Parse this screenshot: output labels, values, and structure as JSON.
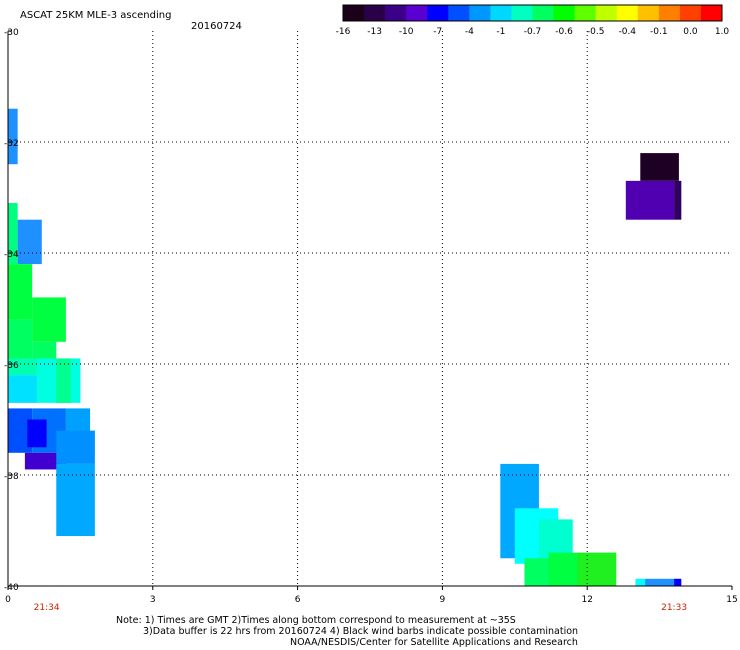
{
  "header": {
    "title": "ASCAT 25KM MLE-3 ascending",
    "date": "20160724"
  },
  "colorbar": {
    "labels": [
      "-16",
      "-13",
      "-10",
      "-7",
      "-4",
      "-1",
      "-0.7",
      "-0.6",
      "-0.5",
      "-0.4",
      "-0.1",
      "0.0",
      "1.0"
    ],
    "colors": [
      "#1a0018",
      "#2a0048",
      "#3c0088",
      "#5a00d0",
      "#0000ff",
      "#0050ff",
      "#0098ff",
      "#00d8ff",
      "#00ffc0",
      "#00ff60",
      "#00ff00",
      "#60ff00",
      "#c0ff00",
      "#ffff00",
      "#ffc000",
      "#ff8000",
      "#ff4000",
      "#ff0000"
    ]
  },
  "chart_data": {
    "type": "heatmap",
    "xlim": [
      0,
      15
    ],
    "ylim": [
      -40,
      -30
    ],
    "x_ticks": [
      "0",
      "3",
      "6",
      "9",
      "12",
      "15"
    ],
    "y_ticks": [
      "-30",
      "-32",
      "-34",
      "-36",
      "-38",
      "-40"
    ],
    "time_labels": [
      {
        "x": 0.8,
        "text": "21:34"
      },
      {
        "x": 13.8,
        "text": "21:33"
      }
    ],
    "cells": [
      {
        "x0": 0.0,
        "x1": 0.2,
        "y0": -32.4,
        "y1": -31.4,
        "color": "#1e90ff"
      },
      {
        "x0": 0.0,
        "x1": 0.2,
        "y0": -34.2,
        "y1": -33.1,
        "color": "#00ff80"
      },
      {
        "x0": 0.2,
        "x1": 0.7,
        "y0": -34.2,
        "y1": -33.4,
        "color": "#1e90ff"
      },
      {
        "x0": 0.0,
        "x1": 0.5,
        "y0": -35.2,
        "y1": -34.2,
        "color": "#00ff40"
      },
      {
        "x0": 0.5,
        "x1": 1.2,
        "y0": -35.6,
        "y1": -34.8,
        "color": "#00ff40"
      },
      {
        "x0": 0.0,
        "x1": 0.5,
        "y0": -36.0,
        "y1": -35.2,
        "color": "#00ff60"
      },
      {
        "x0": 0.5,
        "x1": 1.0,
        "y0": -36.0,
        "y1": -35.6,
        "color": "#00ff60"
      },
      {
        "x0": 0.0,
        "x1": 0.6,
        "y0": -36.2,
        "y1": -35.9,
        "color": "#00ffb0"
      },
      {
        "x0": 0.6,
        "x1": 1.5,
        "y0": -36.7,
        "y1": -35.9,
        "color": "#00ffe0"
      },
      {
        "x0": 1.0,
        "x1": 1.3,
        "y0": -36.7,
        "y1": -35.9,
        "color": "#00ff90"
      },
      {
        "x0": 0.0,
        "x1": 0.6,
        "y0": -36.7,
        "y1": -36.2,
        "color": "#00e0ff"
      },
      {
        "x0": 0.0,
        "x1": 0.5,
        "y0": -37.6,
        "y1": -36.8,
        "color": "#0050ff"
      },
      {
        "x0": 0.5,
        "x1": 1.2,
        "y0": -37.6,
        "y1": -36.8,
        "color": "#0070ff"
      },
      {
        "x0": 1.2,
        "x1": 1.7,
        "y0": -37.5,
        "y1": -36.8,
        "color": "#00a0ff"
      },
      {
        "x0": 0.4,
        "x1": 0.8,
        "y0": -37.5,
        "y1": -37.0,
        "color": "#0000ff"
      },
      {
        "x0": 0.35,
        "x1": 1.2,
        "y0": -37.9,
        "y1": -37.6,
        "color": "#4000d0"
      },
      {
        "x0": 1.0,
        "x1": 1.8,
        "y0": -37.8,
        "y1": -37.2,
        "color": "#0090ff"
      },
      {
        "x0": 1.0,
        "x1": 1.8,
        "y0": -39.1,
        "y1": -37.8,
        "color": "#00a8ff"
      },
      {
        "x0": 13.1,
        "x1": 13.9,
        "y0": -32.7,
        "y1": -32.2,
        "color": "#1e0024"
      },
      {
        "x0": 12.8,
        "x1": 13.8,
        "y0": -33.4,
        "y1": -32.7,
        "color": "#5000b0"
      },
      {
        "x0": 13.8,
        "x1": 13.95,
        "y0": -33.4,
        "y1": -32.7,
        "color": "#300060"
      },
      {
        "x0": 10.2,
        "x1": 11.0,
        "y0": -39.5,
        "y1": -37.8,
        "color": "#00a8ff"
      },
      {
        "x0": 10.5,
        "x1": 11.4,
        "y0": -39.6,
        "y1": -38.6,
        "color": "#00ffff"
      },
      {
        "x0": 11.0,
        "x1": 11.7,
        "y0": -39.8,
        "y1": -38.8,
        "color": "#00ffd0"
      },
      {
        "x0": 10.7,
        "x1": 12.3,
        "y0": -40.0,
        "y1": -39.5,
        "color": "#00ff60"
      },
      {
        "x0": 11.2,
        "x1": 12.6,
        "y0": -40.0,
        "y1": -39.4,
        "color": "#00ff40"
      },
      {
        "x0": 11.8,
        "x1": 12.6,
        "y0": -40.0,
        "y1": -39.4,
        "color": "#20f020"
      },
      {
        "x0": 13.0,
        "x1": 13.2,
        "y0": -40.0,
        "y1": -39.87,
        "color": "#00ffff"
      },
      {
        "x0": 13.2,
        "x1": 13.8,
        "y0": -40.0,
        "y1": -39.87,
        "color": "#1e90ff"
      },
      {
        "x0": 13.8,
        "x1": 13.95,
        "y0": -40.0,
        "y1": -39.87,
        "color": "#0000ff"
      }
    ],
    "grid": true
  },
  "notes": {
    "line1": "Note: 1) Times are GMT 2)Times along bottom correspond to measurement at ~35S",
    "line2": "3)Data buffer is 22 hrs from 20160724 4) Black wind barbs indicate possible contamination",
    "line3": "NOAA/NESDIS/Center for Satellite Applications and Research"
  }
}
